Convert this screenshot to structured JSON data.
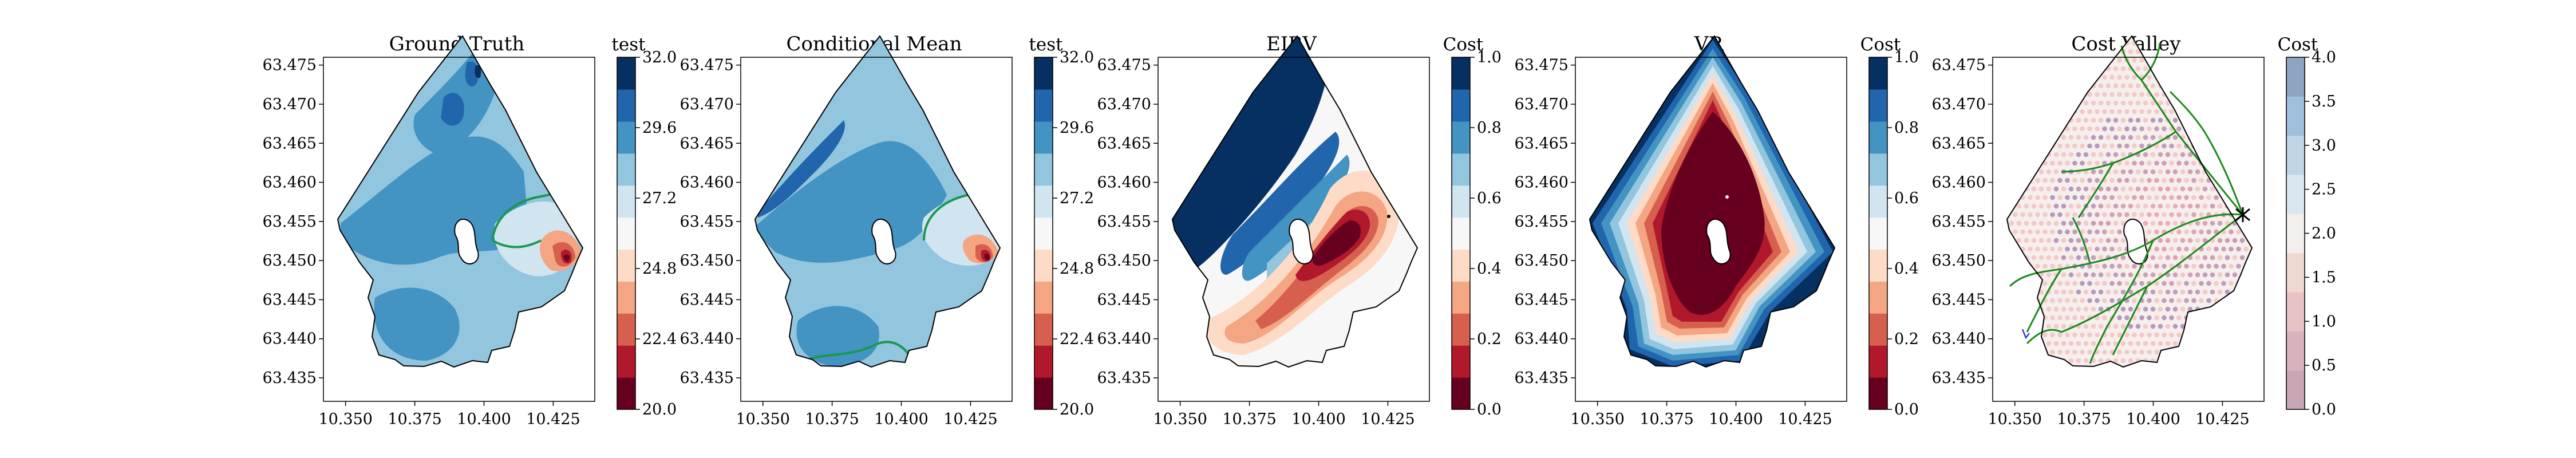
{
  "figure": {
    "panels": [
      {
        "id": "ground-truth",
        "title": "Ground Truth",
        "colorbar_label": "test",
        "colorbar_ticks": [
          "20.0",
          "22.4",
          "24.8",
          "27.2",
          "29.6",
          "32.0"
        ],
        "colorbar_colors": [
          "#67001f",
          "#b2182b",
          "#d6604d",
          "#f4a582",
          "#fddbc7",
          "#f7f7f7",
          "#d1e5f0",
          "#92c5de",
          "#4393c3",
          "#2166ac",
          "#053061"
        ]
      },
      {
        "id": "conditional-mean",
        "title": "Conditional Mean",
        "colorbar_label": "test",
        "colorbar_ticks": [
          "20.0",
          "22.4",
          "24.8",
          "27.2",
          "29.6",
          "32.0"
        ],
        "colorbar_colors": [
          "#67001f",
          "#b2182b",
          "#d6604d",
          "#f4a582",
          "#fddbc7",
          "#f7f7f7",
          "#d1e5f0",
          "#92c5de",
          "#4393c3",
          "#2166ac",
          "#053061"
        ]
      },
      {
        "id": "eibv",
        "title": "EIBV",
        "colorbar_label": "Cost",
        "colorbar_ticks": [
          "0.0",
          "0.2",
          "0.4",
          "0.6",
          "0.8",
          "1.0"
        ],
        "colorbar_colors": [
          "#67001f",
          "#b2182b",
          "#d6604d",
          "#f4a582",
          "#fddbc7",
          "#f7f7f7",
          "#d1e5f0",
          "#92c5de",
          "#4393c3",
          "#2166ac",
          "#053061"
        ]
      },
      {
        "id": "vr",
        "title": "VR",
        "colorbar_label": "Cost",
        "colorbar_ticks": [
          "0.0",
          "0.2",
          "0.4",
          "0.6",
          "0.8",
          "1.0"
        ],
        "colorbar_colors": [
          "#67001f",
          "#b2182b",
          "#d6604d",
          "#f4a582",
          "#fddbc7",
          "#f7f7f7",
          "#d1e5f0",
          "#92c5de",
          "#4393c3",
          "#2166ac",
          "#053061"
        ]
      },
      {
        "id": "cost-valley",
        "title": "Cost Valley",
        "colorbar_label": "Cost",
        "colorbar_ticks": [
          "0.0",
          "0.5",
          "1.0",
          "1.5",
          "2.0",
          "2.5",
          "3.0",
          "3.5",
          "4.0"
        ],
        "colorbar_colors": [
          "#c9a6b6",
          "#d8b2bd",
          "#e7c3c6",
          "#f1d7d2",
          "#f3efed",
          "#dbe7f0",
          "#bfd5e8",
          "#a0bfdd",
          "#8da4c2"
        ]
      }
    ],
    "axes": {
      "x_ticks": [
        "10.350",
        "10.375",
        "10.400",
        "10.425"
      ],
      "y_ticks": [
        "63.475",
        "63.470",
        "63.465",
        "63.460",
        "63.455",
        "63.450",
        "63.445",
        "63.440",
        "63.435"
      ]
    }
  },
  "chart_data": [
    {
      "type": "heatmap",
      "title": "Ground Truth",
      "xlabel": "",
      "ylabel": "",
      "xlim": [
        10.342,
        10.44
      ],
      "ylim": [
        63.432,
        63.476
      ],
      "x_ticks": [
        10.35,
        10.375,
        10.4,
        10.425
      ],
      "y_ticks": [
        63.475,
        63.47,
        63.465,
        63.46,
        63.455,
        63.45,
        63.445,
        63.44,
        63.435
      ],
      "colorbar": {
        "label": "test",
        "range": [
          20.0,
          32.0
        ],
        "ticks": [
          20.0,
          22.4,
          24.8,
          27.2,
          29.6,
          32.0
        ]
      }
    },
    {
      "type": "heatmap",
      "title": "Conditional Mean",
      "xlabel": "",
      "ylabel": "",
      "xlim": [
        10.342,
        10.44
      ],
      "ylim": [
        63.432,
        63.476
      ],
      "x_ticks": [
        10.35,
        10.375,
        10.4,
        10.425
      ],
      "y_ticks": [
        63.475,
        63.47,
        63.465,
        63.46,
        63.455,
        63.45,
        63.445,
        63.44,
        63.435
      ],
      "colorbar": {
        "label": "test",
        "range": [
          20.0,
          32.0
        ],
        "ticks": [
          20.0,
          22.4,
          24.8,
          27.2,
          29.6,
          32.0
        ]
      }
    },
    {
      "type": "heatmap",
      "title": "EIBV",
      "xlabel": "",
      "ylabel": "",
      "xlim": [
        10.342,
        10.44
      ],
      "ylim": [
        63.432,
        63.476
      ],
      "x_ticks": [
        10.35,
        10.375,
        10.4,
        10.425
      ],
      "y_ticks": [
        63.475,
        63.47,
        63.465,
        63.46,
        63.455,
        63.45,
        63.445,
        63.44,
        63.435
      ],
      "colorbar": {
        "label": "Cost",
        "range": [
          0.0,
          1.0
        ],
        "ticks": [
          0.0,
          0.2,
          0.4,
          0.6,
          0.8,
          1.0
        ]
      }
    },
    {
      "type": "heatmap",
      "title": "VR",
      "xlabel": "",
      "ylabel": "",
      "xlim": [
        10.342,
        10.44
      ],
      "ylim": [
        63.432,
        63.476
      ],
      "x_ticks": [
        10.35,
        10.375,
        10.4,
        10.425
      ],
      "y_ticks": [
        63.475,
        63.47,
        63.465,
        63.46,
        63.455,
        63.45,
        63.445,
        63.44,
        63.435
      ],
      "colorbar": {
        "label": "Cost",
        "range": [
          0.0,
          1.0
        ],
        "ticks": [
          0.0,
          0.2,
          0.4,
          0.6,
          0.8,
          1.0
        ]
      }
    },
    {
      "type": "heatmap",
      "title": "Cost Valley",
      "xlabel": "",
      "ylabel": "",
      "xlim": [
        10.342,
        10.44
      ],
      "ylim": [
        63.432,
        63.476
      ],
      "x_ticks": [
        10.35,
        10.375,
        10.4,
        10.425
      ],
      "y_ticks": [
        63.475,
        63.47,
        63.465,
        63.46,
        63.455,
        63.45,
        63.445,
        63.44,
        63.435
      ],
      "colorbar": {
        "label": "Cost",
        "range": [
          0.0,
          4.0
        ],
        "ticks": [
          0.0,
          0.5,
          1.0,
          1.5,
          2.0,
          2.5,
          3.0,
          3.5,
          4.0
        ]
      }
    }
  ]
}
